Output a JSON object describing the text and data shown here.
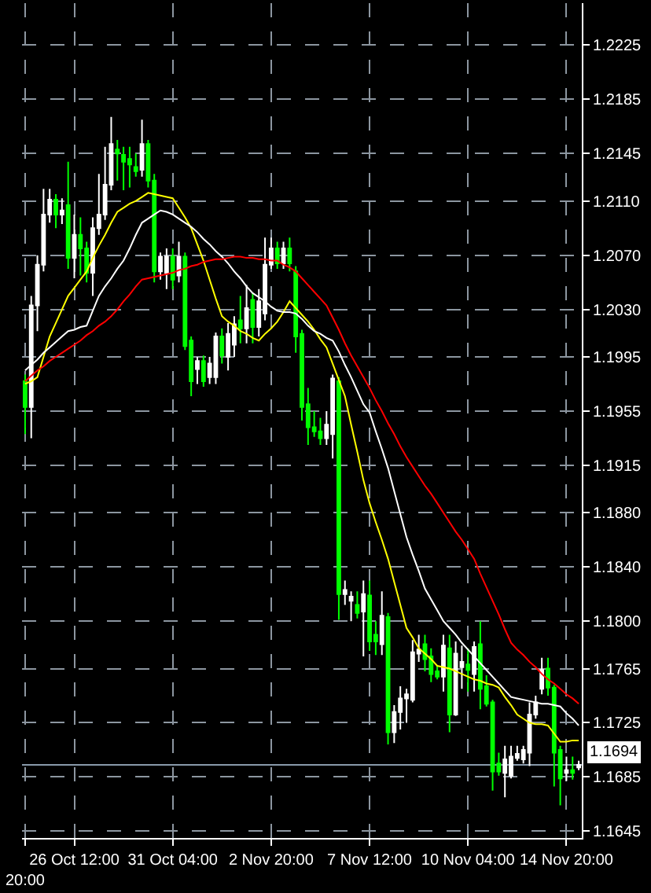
{
  "chart_data": {
    "type": "candlestick",
    "categories": [
      "20:00",
      null,
      null,
      null,
      null,
      null,
      null,
      null,
      "26 Oct 12:00",
      null,
      null,
      null,
      null,
      null,
      null,
      null,
      null,
      null,
      null,
      null,
      null,
      null,
      null,
      null,
      "31 Oct 04:00",
      null,
      null,
      null,
      null,
      null,
      null,
      null,
      null,
      null,
      null,
      null,
      null,
      null,
      null,
      null,
      "2 Nov 20:00",
      null,
      null,
      null,
      null,
      null,
      null,
      null,
      null,
      null,
      null,
      null,
      null,
      null,
      null,
      null,
      "7 Nov 12:00",
      null,
      null,
      null,
      null,
      null,
      null,
      null,
      null,
      null,
      null,
      null,
      null,
      null,
      null,
      null,
      "10 Nov 04:00",
      null,
      null,
      null,
      null,
      null,
      null,
      null,
      null,
      null,
      null,
      null,
      null,
      null,
      null,
      null,
      "14 Nov 20:00",
      null,
      null
    ],
    "ohlc": [
      [
        1.1977,
        1.1982,
        1.1938,
        1.1958
      ],
      [
        1.1958,
        1.204,
        1.1935,
        1.2033
      ],
      [
        1.2033,
        1.207,
        1.2014,
        1.2063
      ],
      [
        1.2063,
        1.2119,
        1.2058,
        1.21
      ],
      [
        1.21,
        1.2119,
        1.2094,
        1.2111
      ],
      [
        1.2111,
        1.2115,
        1.209,
        1.21
      ],
      [
        1.21,
        1.2112,
        1.2093,
        1.2103
      ],
      [
        1.2107,
        1.2139,
        1.206,
        1.2068
      ],
      [
        1.2068,
        1.21,
        1.2053,
        1.2085
      ],
      [
        1.2085,
        1.2098,
        1.2055,
        1.2075
      ],
      [
        1.2075,
        1.208,
        1.205,
        1.2057
      ],
      [
        1.2057,
        1.2098,
        1.204,
        1.209
      ],
      [
        1.209,
        1.213,
        1.2085,
        1.21
      ],
      [
        1.21,
        1.215,
        1.2096,
        1.2122
      ],
      [
        1.2122,
        1.2172,
        1.2118,
        1.2152
      ],
      [
        1.2148,
        1.2155,
        1.2125,
        1.2145
      ],
      [
        1.2144,
        1.215,
        1.2118,
        1.2139
      ],
      [
        1.2141,
        1.215,
        1.212,
        1.2137
      ],
      [
        1.2135,
        1.2145,
        1.2128,
        1.2132
      ],
      [
        1.2133,
        1.217,
        1.2128,
        1.2152
      ],
      [
        1.2152,
        1.2155,
        1.212,
        1.2125
      ],
      [
        1.2125,
        1.213,
        1.205,
        1.2058
      ],
      [
        1.2058,
        1.2072,
        1.2052,
        1.2069
      ],
      [
        1.2057,
        1.2075,
        1.2045,
        1.2069
      ],
      [
        1.2069,
        1.2075,
        1.2045,
        1.2052
      ],
      [
        1.2055,
        1.208,
        1.205,
        1.2069
      ],
      [
        1.2069,
        1.2072,
        1.2,
        1.2003
      ],
      [
        1.2007,
        1.201,
        1.1966,
        1.1977
      ],
      [
        1.1986,
        1.1995,
        1.1975,
        1.1992
      ],
      [
        1.1992,
        1.1996,
        1.1973,
        1.1977
      ],
      [
        1.198,
        1.1995,
        1.1975,
        1.199
      ],
      [
        1.198,
        1.2013,
        1.1975,
        1.201
      ],
      [
        1.201,
        1.2016,
        1.199,
        1.1996
      ],
      [
        1.1995,
        1.202,
        1.1985,
        1.2012
      ],
      [
        1.2004,
        1.2025,
        1.1995,
        1.2019
      ],
      [
        1.2022,
        1.204,
        1.2005,
        1.2016
      ],
      [
        1.2016,
        1.2048,
        1.2005,
        1.2031
      ],
      [
        1.2037,
        1.2042,
        1.2005,
        1.2017
      ],
      [
        1.2017,
        1.2045,
        1.201,
        1.2036
      ],
      [
        1.2027,
        1.2083,
        1.2022,
        1.2063
      ],
      [
        1.2063,
        1.2083,
        1.206,
        1.2075
      ],
      [
        1.2075,
        1.208,
        1.206,
        1.2064
      ],
      [
        1.2064,
        1.208,
        1.206,
        1.2075
      ],
      [
        1.2075,
        1.2083,
        1.2058,
        1.2064
      ],
      [
        1.2058,
        1.2062,
        1.1998,
        1.201
      ],
      [
        1.2012,
        1.2015,
        1.1948,
        1.1958
      ],
      [
        1.196,
        1.1972,
        1.193,
        1.1943
      ],
      [
        1.1943,
        1.1955,
        1.1936,
        1.194
      ],
      [
        1.194,
        1.195,
        1.193,
        1.1935
      ],
      [
        1.1935,
        1.1955,
        1.193,
        1.1945
      ],
      [
        1.1938,
        1.1982,
        1.192,
        1.1979
      ],
      [
        1.1977,
        1.198,
        1.1801,
        1.182
      ],
      [
        1.182,
        1.183,
        1.1812,
        1.1823
      ],
      [
        1.1815,
        1.1822,
        1.18,
        1.1818
      ],
      [
        1.1812,
        1.1822,
        1.1802,
        1.1806
      ],
      [
        1.1807,
        1.183,
        1.1774,
        1.182
      ],
      [
        1.1819,
        1.183,
        1.1778,
        1.1785
      ],
      [
        1.179,
        1.18,
        1.1775,
        1.1785
      ],
      [
        1.1783,
        1.1822,
        1.1775,
        1.1804
      ],
      [
        1.1803,
        1.1806,
        1.1709,
        1.1718
      ],
      [
        1.1718,
        1.1738,
        1.171,
        1.1733
      ],
      [
        1.1733,
        1.1752,
        1.172,
        1.1743
      ],
      [
        1.1743,
        1.175,
        1.1725,
        1.1746
      ],
      [
        1.1742,
        1.1786,
        1.174,
        1.1777
      ],
      [
        1.1776,
        1.179,
        1.177,
        1.1779
      ],
      [
        1.1783,
        1.179,
        1.1763,
        1.1772
      ],
      [
        1.1774,
        1.178,
        1.1755,
        1.1761
      ],
      [
        1.1763,
        1.1767,
        1.1757,
        1.1759
      ],
      [
        1.1759,
        1.179,
        1.1748,
        1.1782
      ],
      [
        1.178,
        1.179,
        1.1718,
        1.1731
      ],
      [
        1.1731,
        1.1785,
        1.173,
        1.1776
      ],
      [
        1.1766,
        1.1782,
        1.175,
        1.177
      ],
      [
        1.1768,
        1.178,
        1.1748,
        1.1764
      ],
      [
        1.1761,
        1.1785,
        1.1748,
        1.1781
      ],
      [
        1.1783,
        1.18,
        1.1735,
        1.175
      ],
      [
        1.1752,
        1.176,
        1.1737,
        1.1739
      ],
      [
        1.174,
        1.1742,
        1.1675,
        1.1689
      ],
      [
        1.1695,
        1.1703,
        1.1686,
        1.1689
      ],
      [
        1.1688,
        1.1708,
        1.167,
        1.1698
      ],
      [
        1.1686,
        1.1708,
        1.1684,
        1.17
      ],
      [
        1.1699,
        1.1708,
        1.1697,
        1.1702
      ],
      [
        1.1698,
        1.1708,
        1.1695,
        1.1705
      ],
      [
        1.1703,
        1.174,
        1.1693,
        1.1731
      ],
      [
        1.1731,
        1.1745,
        1.1728,
        1.174
      ],
      [
        1.175,
        1.1773,
        1.1746,
        1.1764
      ],
      [
        1.1765,
        1.1773,
        1.1745,
        1.1751
      ],
      [
        1.1751,
        1.1753,
        1.1678,
        1.1703
      ],
      [
        1.1705,
        1.1708,
        1.1664,
        1.1684
      ],
      [
        1.1688,
        1.17,
        1.1682,
        1.169
      ],
      [
        1.169,
        1.17,
        1.1683,
        1.1688
      ],
      [
        1.1692,
        1.1697,
        1.169,
        1.1694
      ]
    ],
    "colors": [
      "#00ff00",
      "#ffffff",
      "#ffffff",
      "#ffffff",
      "#ffffff",
      "#00ff00",
      "#ffffff",
      "#00ff00",
      "#ffffff",
      "#00ff00",
      "#00ff00",
      "#ffffff",
      "#ffffff",
      "#ffffff",
      "#ffffff",
      "#00ff00",
      "#00ff00",
      "#00ff00",
      "#00ff00",
      "#ffffff",
      "#00ff00",
      "#00ff00",
      "#ffffff",
      "#ffffff",
      "#00ff00",
      "#ffffff",
      "#00ff00",
      "#00ff00",
      "#ffffff",
      "#00ff00",
      "#ffffff",
      "#ffffff",
      "#00ff00",
      "#ffffff",
      "#ffffff",
      "#00ff00",
      "#ffffff",
      "#00ff00",
      "#ffffff",
      "#ffffff",
      "#ffffff",
      "#00ff00",
      "#ffffff",
      "#00ff00",
      "#00ff00",
      "#00ff00",
      "#00ff00",
      "#00ff00",
      "#00ff00",
      "#ffffff",
      "#ffffff",
      "#00ff00",
      "#ffffff",
      "#ffffff",
      "#00ff00",
      "#ffffff",
      "#00ff00",
      "#00ff00",
      "#ffffff",
      "#00ff00",
      "#ffffff",
      "#ffffff",
      "#ffffff",
      "#ffffff",
      "#ffffff",
      "#00ff00",
      "#00ff00",
      "#00ff00",
      "#ffffff",
      "#00ff00",
      "#ffffff",
      "#ffffff",
      "#00ff00",
      "#ffffff",
      "#00ff00",
      "#00ff00",
      "#00ff00",
      "#00ff00",
      "#ffffff",
      "#ffffff",
      "#ffffff",
      "#ffffff",
      "#ffffff",
      "#ffffff",
      "#ffffff",
      "#00ff00",
      "#00ff00",
      "#00ff00",
      "#ffffff",
      "#00ff00",
      "#ffffff"
    ],
    "series": [
      {
        "type": "line",
        "color": "#ffff00",
        "values": [
          1.1975,
          1.1977,
          1.198,
          1.1995,
          1.201,
          1.202,
          1.203,
          1.204,
          1.2046,
          1.2052,
          1.2058,
          1.2068,
          1.2077,
          1.2085,
          1.2094,
          1.2102,
          1.2105,
          1.2108,
          1.211,
          1.2113,
          1.2116,
          1.2115,
          1.2114,
          1.2113,
          1.2112,
          1.2105,
          1.2098,
          1.209,
          1.2078,
          1.2066,
          1.2052,
          1.2038,
          1.2025,
          1.2021,
          1.2018,
          1.2014,
          1.2012,
          1.2009,
          1.2007,
          1.2012,
          1.2016,
          1.2021,
          1.2028,
          1.2036,
          1.2031,
          1.2026,
          1.2021,
          1.2015,
          1.2008,
          1.2002,
          1.199,
          1.1978,
          1.1966,
          1.1945,
          1.1925,
          1.1904,
          1.1887,
          1.1873,
          1.186,
          1.1846,
          1.1829,
          1.1812,
          1.1795,
          1.1788,
          1.178,
          1.1776,
          1.1772,
          1.1767,
          1.1766,
          1.1765,
          1.1763,
          1.1761,
          1.1759,
          1.1757,
          1.1756,
          1.1754,
          1.1753,
          1.1751,
          1.1744,
          1.1738,
          1.1731,
          1.1728,
          1.1725,
          1.1724,
          1.1724,
          1.1723,
          1.1717,
          1.1711,
          1.1711,
          1.1712,
          1.1712
        ]
      },
      {
        "type": "line",
        "color": "#ffffff",
        "values": [
          1.1985,
          1.1989,
          1.1993,
          1.1998,
          1.2002,
          1.2006,
          1.201,
          1.2014,
          1.2015,
          1.2017,
          1.2018,
          1.2029,
          1.204,
          1.2047,
          1.2053,
          1.206,
          1.2066,
          1.2075,
          1.2085,
          1.2094,
          1.2097,
          1.21,
          1.2103,
          1.2102,
          1.21,
          1.2097,
          1.2094,
          1.2091,
          1.2087,
          1.2082,
          1.2078,
          1.2073,
          1.2069,
          1.2064,
          1.2058,
          1.2053,
          1.2047,
          1.2042,
          1.2039,
          1.2036,
          1.2032,
          1.2029,
          1.2028,
          1.2028,
          1.2027,
          1.2023,
          1.2018,
          1.2014,
          1.2012,
          1.2009,
          1.2007,
          1.1999,
          1.1989,
          1.198,
          1.197,
          1.196,
          1.1954,
          1.194,
          1.1927,
          1.1913,
          1.1896,
          1.1879,
          1.1862,
          1.1849,
          1.1837,
          1.1824,
          1.1816,
          1.1808,
          1.18,
          1.1795,
          1.179,
          1.1784,
          1.1779,
          1.1774,
          1.1769,
          1.1764,
          1.1759,
          1.1754,
          1.1749,
          1.1744,
          1.1743,
          1.1742,
          1.1741,
          1.174,
          1.1739,
          1.1739,
          1.1738,
          1.1737,
          1.1732,
          1.1728,
          1.1723
        ]
      },
      {
        "type": "line",
        "color": "#ff0000",
        "values": [
          1.1977,
          1.1981,
          1.1985,
          1.1988,
          1.1992,
          1.1995,
          1.1998,
          1.2001,
          1.2004,
          1.2007,
          1.2011,
          1.2014,
          1.2018,
          1.2021,
          1.2025,
          1.203,
          1.2036,
          1.2041,
          1.2047,
          1.2052,
          1.2053,
          1.2054,
          1.2055,
          1.2056,
          1.2057,
          1.2059,
          1.206,
          1.2062,
          1.2063,
          1.2065,
          1.2066,
          1.2067,
          1.2067,
          1.2068,
          1.2069,
          1.2069,
          1.2068,
          1.2068,
          1.2067,
          1.2067,
          1.2066,
          1.2066,
          1.2063,
          1.2061,
          1.2058,
          1.2053,
          1.2048,
          1.2043,
          1.2038,
          1.2033,
          1.2024,
          1.2015,
          1.2005,
          1.1996,
          1.1988,
          1.198,
          1.1972,
          1.1963,
          1.1955,
          1.1946,
          1.1938,
          1.1929,
          1.1921,
          1.1914,
          1.1907,
          1.19,
          1.1894,
          1.1887,
          1.188,
          1.1873,
          1.1866,
          1.186,
          1.1853,
          1.1846,
          1.1835,
          1.1825,
          1.1815,
          1.1805,
          1.1794,
          1.1784,
          1.1779,
          1.1775,
          1.177,
          1.1766,
          1.1761,
          1.1757,
          1.1754,
          1.175,
          1.1746,
          1.1743,
          1.1739
        ]
      }
    ],
    "ylim": [
      1.164,
      1.2256
    ],
    "yticks": [
      1.1645,
      1.1685,
      1.1725,
      1.1765,
      {
        "value": 1.18,
        "label": "1.1800"
      },
      {
        "value": 1.184,
        "label": "1.1840"
      },
      {
        "value": 1.188,
        "label": "1.1880"
      },
      1.1915,
      1.1955,
      1.1995,
      {
        "value": 1.203,
        "label": "1.2030"
      },
      {
        "value": 1.207,
        "label": "1.2070"
      },
      {
        "value": 1.211,
        "label": "1.2110"
      },
      1.2145,
      1.2185,
      1.2225
    ],
    "ref_lines": [
      {
        "axis": "y",
        "value": 1.1694,
        "label": "1.1694",
        "color": "#8899aa"
      }
    ],
    "grid": true
  }
}
